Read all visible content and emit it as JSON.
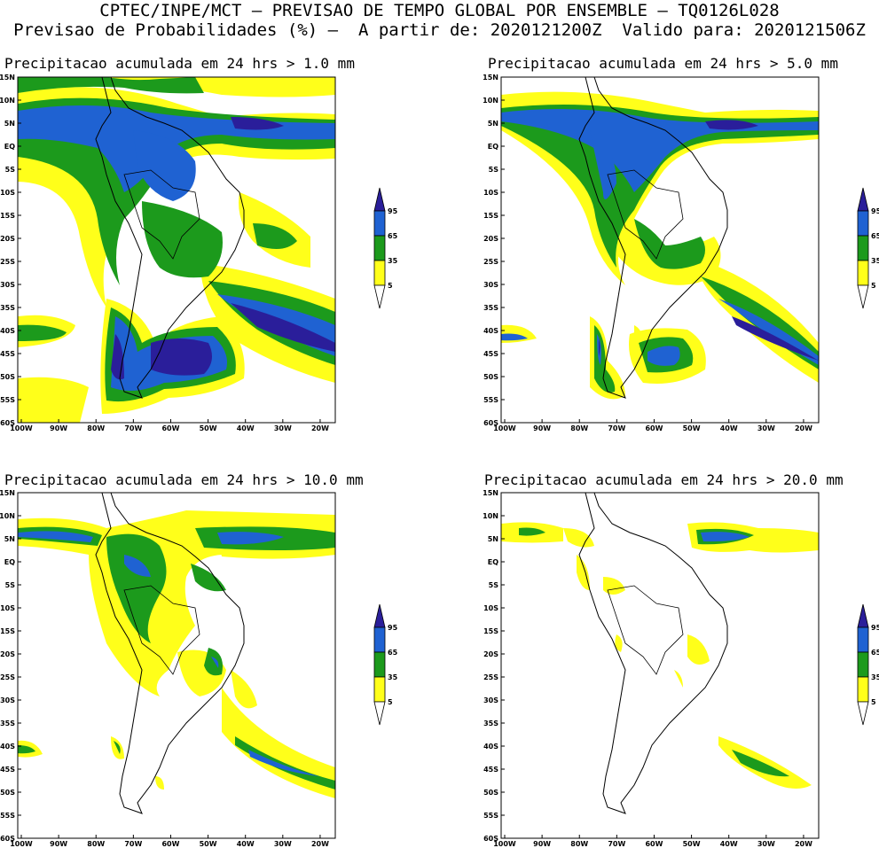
{
  "header": {
    "line1": "CPTEC/INPE/MCT – PREVISAO DE TEMPO GLOBAL POR ENSEMBLE – TQ0126L028",
    "line2": "Previsao de Probabilidades (%) –  A partir de: 2020121200Z  Valido para: 2020121506Z"
  },
  "panels": [
    {
      "title": "Precipitacao acumulada em 24 hrs > 1.0 mm"
    },
    {
      "title": "Precipitacao acumulada em 24 hrs > 5.0 mm"
    },
    {
      "title": "Precipitacao acumulada em 24 hrs > 10.0 mm"
    },
    {
      "title": "Precipitacao acumulada em 24 hrs > 20.0 mm"
    }
  ],
  "axes": {
    "lat_labels": [
      "15N",
      "10N",
      "5N",
      "EQ",
      "5S",
      "10S",
      "15S",
      "20S",
      "25S",
      "30S",
      "35S",
      "40S",
      "45S",
      "50S",
      "55S",
      "60S"
    ],
    "lon_labels": [
      "100W",
      "90W",
      "80W",
      "70W",
      "60W",
      "50W",
      "40W",
      "30W",
      "20W"
    ]
  },
  "legend": {
    "levels": [
      "95",
      "65",
      "35",
      "5"
    ],
    "colors": {
      "c95": "#2a1e9a",
      "c65": "#1f62d2",
      "c35": "#1c9a1c",
      "c5": "#ffff1a",
      "land": "#ffffff",
      "coast": "#000000"
    }
  }
}
